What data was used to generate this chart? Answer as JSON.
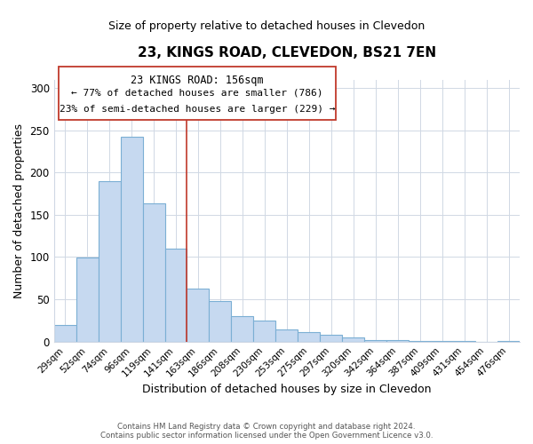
{
  "title": "23, KINGS ROAD, CLEVEDON, BS21 7EN",
  "subtitle": "Size of property relative to detached houses in Clevedon",
  "xlabel": "Distribution of detached houses by size in Clevedon",
  "ylabel": "Number of detached properties",
  "bar_labels": [
    "29sqm",
    "52sqm",
    "74sqm",
    "96sqm",
    "119sqm",
    "141sqm",
    "163sqm",
    "186sqm",
    "208sqm",
    "230sqm",
    "253sqm",
    "275sqm",
    "297sqm",
    "320sqm",
    "342sqm",
    "364sqm",
    "387sqm",
    "409sqm",
    "431sqm",
    "454sqm",
    "476sqm"
  ],
  "bar_values": [
    20,
    99,
    190,
    242,
    164,
    110,
    63,
    48,
    30,
    25,
    14,
    11,
    8,
    5,
    2,
    2,
    1,
    1,
    1,
    0,
    1
  ],
  "bar_color": "#c6d9f0",
  "bar_edge_color": "#7bafd4",
  "vline_x": 5.5,
  "vline_color": "#c0392b",
  "ylim": [
    0,
    310
  ],
  "yticks": [
    0,
    50,
    100,
    150,
    200,
    250,
    300
  ],
  "annotation_title": "23 KINGS ROAD: 156sqm",
  "annotation_line1": "← 77% of detached houses are smaller (786)",
  "annotation_line2": "23% of semi-detached houses are larger (229) →",
  "annotation_box_color": "#ffffff",
  "annotation_box_edge_color": "#c0392b",
  "footer_line1": "Contains HM Land Registry data © Crown copyright and database right 2024.",
  "footer_line2": "Contains public sector information licensed under the Open Government Licence v3.0.",
  "background_color": "#ffffff",
  "grid_color": "#d0d8e4",
  "title_fontsize": 11,
  "subtitle_fontsize": 9,
  "xlabel_fontsize": 9,
  "ylabel_fontsize": 9
}
